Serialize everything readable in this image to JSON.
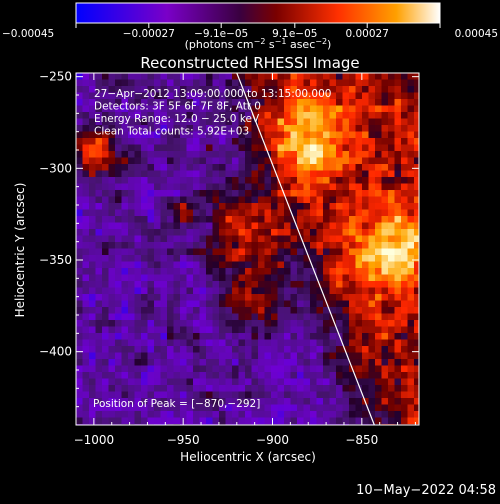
{
  "chart_data": {
    "type": "heatmap",
    "title": "Reconstructed RHESSI Image",
    "xlabel": "Heliocentric X (arcsec)",
    "ylabel": "Heliocentric Y (arcsec)",
    "xlim": [
      -1010,
      -818
    ],
    "ylim": [
      -440,
      -248
    ],
    "x_ticks": [
      -1000,
      -950,
      -900,
      -850
    ],
    "x_tick_labels": [
      "−1000",
      "−950",
      "−900",
      "−850"
    ],
    "y_ticks": [
      -250,
      -300,
      -350,
      -400
    ],
    "y_tick_labels": [
      "−250",
      "−300",
      "−350",
      "−400"
    ],
    "colorbar": {
      "range": [
        -0.00045,
        0.00045
      ],
      "ticks": [
        -0.00045,
        -0.00027,
        -9.1e-05,
        9.1e-05,
        0.00027,
        0.00045
      ],
      "tick_labels": [
        "−0.00045",
        "−0.00027",
        "−9.1e−05",
        "9.1e−05",
        "0.00027",
        "0.00045"
      ],
      "colors": [
        "#0000ff",
        "#7a00c8",
        "#3a0040",
        "#7a0000",
        "#ff3000",
        "#ffa000",
        "#ffffff"
      ]
    },
    "units_prefix": "(photons cm",
    "units_exp1": "−2",
    "units_mid": " s",
    "units_exp2": "−1",
    "units_mid2": " asec",
    "units_exp3": "−2",
    "units_suffix": ")",
    "annotations": [
      "27−Apr−2012 13:09:00.000 to 13:15:00.000",
      "Detectors: 3F 5F 6F 7F 8F, Att 0",
      "Energy Range: 12.0 − 25.0 keV",
      "Clean     Total counts: 5.92E+03"
    ],
    "peak_label": "Position of Peak = [−870,−292]",
    "peak": [
      -870,
      -292
    ],
    "limb_line": [
      [
        -920,
        -248
      ],
      [
        -843,
        -440
      ]
    ],
    "footer_date": "10−May−2022 04:58"
  },
  "colors": {
    "background": "#000000",
    "foreground": "#ffffff"
  }
}
